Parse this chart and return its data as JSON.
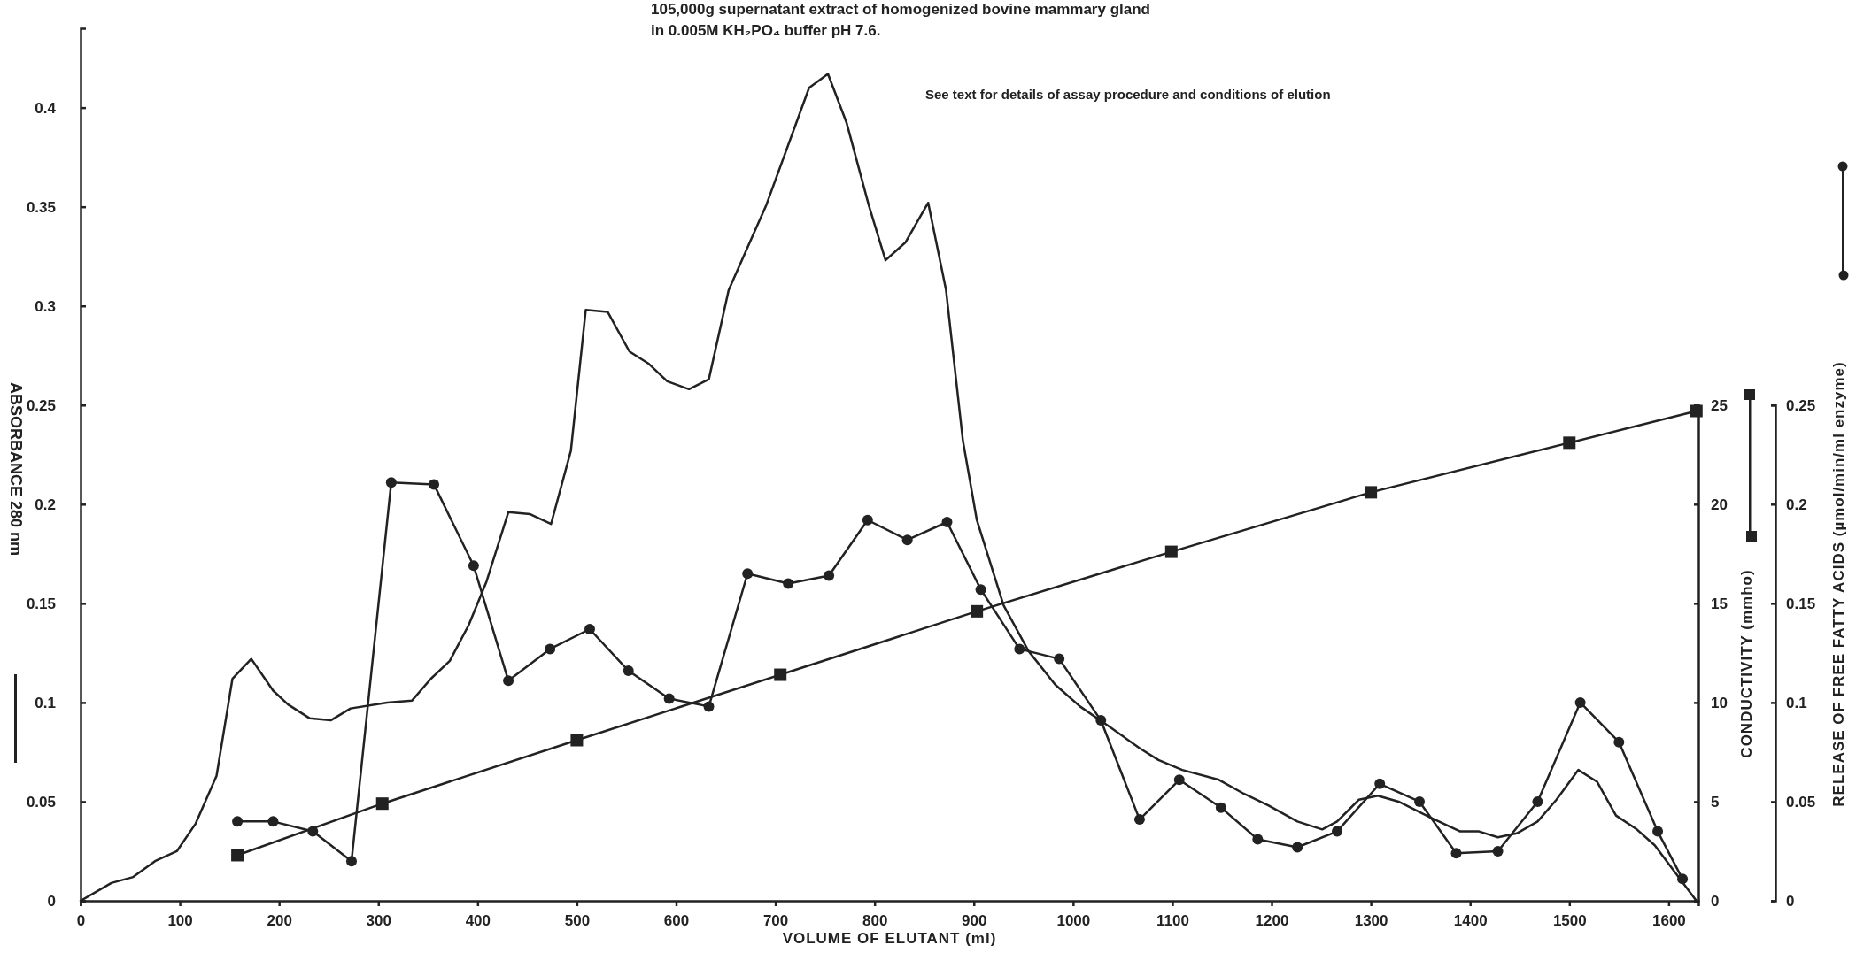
{
  "chart_data": {
    "type": "line",
    "title": "105,000g supernatant extract of homogenized bovine mammary gland",
    "subtitle": "in 0.005M KH₂PO₄ buffer pH 7.6.",
    "annotations": [
      "See text for details of assay procedure and conditions of elution"
    ],
    "xlabel": "VOLUME OF ELUTANT (ml)",
    "ylabel": "ABSORBANCE 280 nm",
    "y2label": "CONDUCTIVITY (mmho)",
    "y3label": "RELEASE OF FREE FATTY ACIDS (µmol/min/ml enzyme)",
    "xlim": [
      0,
      1630
    ],
    "xticks": [
      0,
      100,
      200,
      300,
      400,
      500,
      600,
      700,
      800,
      900,
      1000,
      1100,
      1200,
      1300,
      1400,
      1500,
      1600
    ],
    "ylim": [
      0,
      0.44
    ],
    "yticks": [
      0,
      0.05,
      0.1,
      0.15,
      0.2,
      0.25,
      0.3,
      0.35,
      0.4
    ],
    "y2lim": [
      0,
      25
    ],
    "y2ticks": [
      0,
      5,
      10,
      15,
      20,
      25
    ],
    "y3lim": [
      0,
      0.25
    ],
    "y3ticks": [
      0,
      0.05,
      0.1,
      0.15,
      0.2,
      0.25
    ],
    "grid": false,
    "series": [
      {
        "color": "#222222",
        "marker": "none",
        "x": [
          0,
          31,
          53,
          75,
          97,
          116,
          137,
          153,
          172,
          194,
          209,
          231,
          252,
          272,
          309,
          334,
          353,
          372,
          391,
          409,
          431,
          453,
          474,
          494,
          509,
          531,
          553,
          572,
          591,
          613,
          633,
          653,
          691,
          734,
          753,
          772,
          794,
          811,
          831,
          854,
          872,
          889,
          903,
          930,
          955,
          982,
          1007,
          1036,
          1067,
          1086,
          1110,
          1147,
          1172,
          1197,
          1226,
          1251,
          1266,
          1288,
          1307,
          1328,
          1360,
          1390,
          1409,
          1428,
          1447,
          1468,
          1487,
          1509,
          1528,
          1547,
          1568,
          1586,
          1628
        ],
        "values": [
          0,
          0.009,
          0.012,
          0.02,
          0.025,
          0.039,
          0.063,
          0.112,
          0.122,
          0.106,
          0.099,
          0.092,
          0.091,
          0.097,
          0.1,
          0.101,
          0.112,
          0.121,
          0.139,
          0.161,
          0.196,
          0.195,
          0.19,
          0.227,
          0.298,
          0.297,
          0.277,
          0.271,
          0.262,
          0.258,
          0.263,
          0.308,
          0.351,
          0.41,
          0.417,
          0.392,
          0.351,
          0.323,
          0.332,
          0.352,
          0.308,
          0.232,
          0.192,
          0.149,
          0.126,
          0.109,
          0.098,
          0.088,
          0.077,
          0.071,
          0.066,
          0.061,
          0.054,
          0.048,
          0.04,
          0.036,
          0.04,
          0.051,
          0.053,
          0.05,
          0.042,
          0.035,
          0.035,
          0.032,
          0.034,
          0.04,
          0.051,
          0.066,
          0.06,
          0.043,
          0.036,
          0.028,
          0
        ]
      },
      {
        "axis": "y2",
        "color": "#222222",
        "marker": "square",
        "x": [
          158,
          304,
          500,
          705,
          903,
          1099,
          1300,
          1500,
          1628
        ],
        "values": [
          2.3,
          4.9,
          8.1,
          11.4,
          14.6,
          17.6,
          20.6,
          23.1,
          24.7
        ]
      },
      {
        "axis": "y3",
        "color": "#222222",
        "marker": "circle",
        "x": [
          158,
          194,
          234,
          273,
          313,
          356,
          396,
          431,
          473,
          513,
          552,
          593,
          633,
          672,
          713,
          754,
          793,
          833,
          873,
          907,
          946,
          986,
          1028,
          1067,
          1107,
          1149,
          1186,
          1226,
          1266,
          1309,
          1349,
          1386,
          1428,
          1468,
          1511,
          1550,
          1589,
          1614
        ],
        "values": [
          0.04,
          0.04,
          0.035,
          0.02,
          0.211,
          0.21,
          0.169,
          0.111,
          0.127,
          0.137,
          0.116,
          0.102,
          0.098,
          0.165,
          0.16,
          0.164,
          0.192,
          0.182,
          0.191,
          0.157,
          0.127,
          0.122,
          0.091,
          0.041,
          0.061,
          0.047,
          0.031,
          0.027,
          0.035,
          0.059,
          0.05,
          0.024,
          0.025,
          0.05,
          0.1,
          0.08,
          0.035,
          0.011
        ]
      }
    ]
  }
}
